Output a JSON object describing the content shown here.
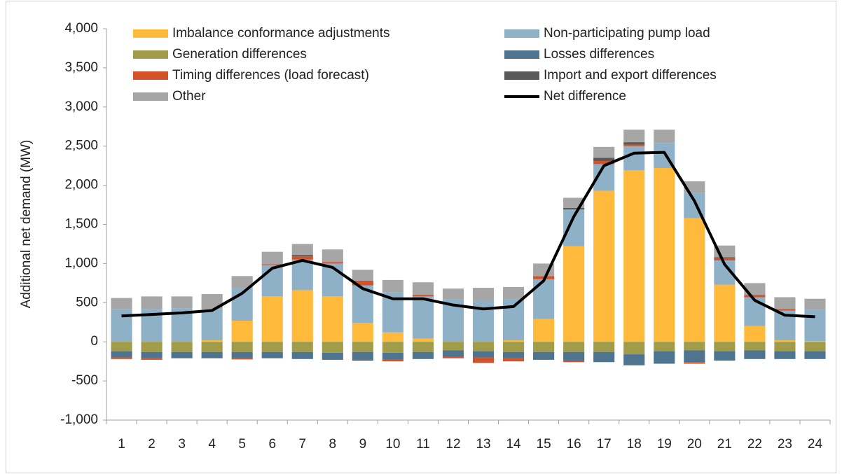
{
  "chart_data": {
    "type": "bar",
    "stacked": true,
    "y_label": "Additional net demand (MW)",
    "categories": [
      "1",
      "2",
      "3",
      "4",
      "5",
      "6",
      "7",
      "8",
      "9",
      "10",
      "11",
      "12",
      "13",
      "14",
      "15",
      "16",
      "17",
      "18",
      "19",
      "20",
      "21",
      "22",
      "23",
      "24"
    ],
    "ylim": [
      -1000,
      4000
    ],
    "yticks": [
      {
        "value": -1000,
        "label": "-1,000"
      },
      -500,
      0,
      500,
      {
        "value": 1000,
        "label": "1,000"
      },
      {
        "value": 1500,
        "label": "1,500"
      },
      {
        "value": 2000,
        "label": "2,000"
      },
      {
        "value": 2500,
        "label": "2,500"
      },
      {
        "value": 3000,
        "label": "3,000"
      },
      {
        "value": 3500,
        "label": "3,500"
      },
      {
        "value": 4000,
        "label": "4,000"
      }
    ],
    "grid": false,
    "series": [
      {
        "name": "Imbalance conformance adjustments",
        "color": "#FFB93B",
        "values": [
          0,
          0,
          0,
          20,
          270,
          580,
          660,
          580,
          240,
          120,
          40,
          0,
          0,
          20,
          290,
          1220,
          1930,
          2190,
          2220,
          1580,
          730,
          200,
          20,
          10
        ]
      },
      {
        "name": "Non-participating pump load",
        "color": "#8FB1C8",
        "values": [
          420,
          420,
          430,
          400,
          420,
          400,
          390,
          420,
          480,
          510,
          540,
          540,
          530,
          520,
          510,
          470,
          340,
          310,
          320,
          320,
          310,
          370,
          380,
          400
        ]
      },
      {
        "name": "Generation differences",
        "color": "#A09C4A",
        "values": [
          -120,
          -130,
          -130,
          -130,
          -130,
          -130,
          -130,
          -140,
          -130,
          -140,
          -130,
          -110,
          -120,
          -130,
          -130,
          -130,
          -130,
          -160,
          -120,
          -110,
          -120,
          -110,
          -120,
          -120
        ]
      },
      {
        "name": "Losses differences",
        "color": "#4E7490",
        "values": [
          -80,
          -80,
          -80,
          -80,
          -80,
          -80,
          -90,
          -90,
          -100,
          -90,
          -90,
          -80,
          -80,
          -80,
          -100,
          -110,
          -130,
          -140,
          -160,
          -150,
          -120,
          -110,
          -100,
          -100
        ]
      },
      {
        "name": "Timing differences (load forecast)",
        "color": "#D4522A",
        "values": [
          -20,
          -20,
          0,
          0,
          -15,
          10,
          40,
          20,
          60,
          -20,
          20,
          -20,
          -70,
          -40,
          40,
          -20,
          40,
          20,
          0,
          -20,
          30,
          30,
          20,
          0
        ]
      },
      {
        "name": "Import and export differences",
        "color": "#595959",
        "values": [
          0,
          0,
          0,
          0,
          0,
          0,
          20,
          0,
          -10,
          0,
          0,
          0,
          0,
          0,
          0,
          20,
          40,
          30,
          0,
          0,
          10,
          0,
          0,
          0
        ]
      },
      {
        "name": "Other",
        "color": "#A6A6A6",
        "values": [
          140,
          160,
          150,
          190,
          150,
          160,
          140,
          160,
          140,
          160,
          160,
          140,
          160,
          160,
          160,
          130,
          140,
          160,
          170,
          150,
          150,
          150,
          150,
          140
        ]
      },
      {
        "name": "Net difference",
        "type": "line",
        "color": "#000000",
        "values": [
          330,
          350,
          370,
          400,
          620,
          940,
          1040,
          950,
          680,
          550,
          550,
          470,
          420,
          450,
          780,
          1600,
          2250,
          2410,
          2420,
          1800,
          990,
          530,
          340,
          320
        ]
      }
    ]
  }
}
